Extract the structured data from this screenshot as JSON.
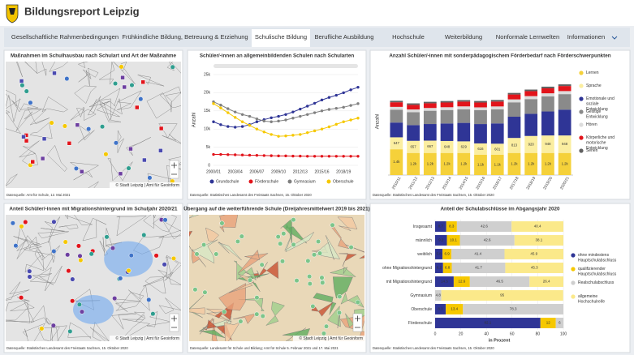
{
  "header": {
    "title": "Bildungsreport Leipzig"
  },
  "nav": {
    "tabs": [
      "Gesellschaftliche Rahmenbedingungen",
      "Frühkindliche Bildung, Betreuung & Erziehung",
      "Schulische Bildung",
      "Berufliche Ausbildung",
      "Hochschule",
      "Weiterbildung",
      "Nonformale Lernwelten",
      "Informationen"
    ],
    "active": 2
  },
  "panels": [
    {
      "title": "Maßnahmen im Schulhausbau nach Schulart und Art der Maßnahme",
      "source": "Datenquelle: Amt für Schule, 12. Mai 2021",
      "attribution": "© Stadt Leipzig | Amt für Geoinform"
    },
    {
      "title": "Schüler/-innen an allgemeinbildenden Schulen nach Schularten",
      "source": "Datenquelle: Statistisches Landesamt des Freistaats Sachsen, 15. Oktober 2020",
      "chart": {
        "type": "line",
        "ylabel": "Anzahl",
        "categories": [
          "2000/01",
          null,
          null,
          "2003/04",
          null,
          null,
          "2006/07",
          null,
          null,
          "2009/10",
          null,
          null,
          "2012/13",
          null,
          null,
          "2015/16",
          null,
          null,
          "2018/19",
          null,
          null
        ],
        "ylim": [
          0,
          25000
        ],
        "yticks": [
          0,
          {
            "value": 5000,
            "label": "5k"
          },
          {
            "value": 10000,
            "label": "10k"
          },
          {
            "value": 15000,
            "label": "15k"
          },
          {
            "value": 20000,
            "label": "20k"
          },
          {
            "value": 25000,
            "label": "25k"
          }
        ],
        "series": [
          {
            "name": "Grundschule",
            "color": "#2f3596",
            "values": [
              12000,
              11200,
              10700,
              10500,
              10700,
              11200,
              12000,
              12600,
              13100,
              13500,
              14000,
              14700,
              15500,
              16300,
              17100,
              18000,
              18700,
              19300,
              20000,
              20800,
              21500
            ]
          },
          {
            "name": "Förderschule",
            "color": "#e2141b",
            "values": [
              3000,
              3000,
              2950,
              2900,
              2850,
              2800,
              2750,
              2700,
              2650,
              2600,
              2600,
              2550,
              2550,
              2500,
              2500,
              2500,
              2500,
              2500,
              2500,
              2500,
              2500
            ]
          },
          {
            "name": "Gymnasium",
            "color": "#808080",
            "values": [
              17500,
              16600,
              15600,
              14700,
              14000,
              13500,
              12800,
              12200,
              12000,
              12200,
              12500,
              13000,
              13500,
              14000,
              14500,
              15000,
              15400,
              15700,
              16000,
              16500,
              17000
            ]
          },
          {
            "name": "Oberschule",
            "color": "#f6c800",
            "values": [
              17000,
              15800,
              14500,
              13200,
              12000,
              11000,
              10000,
              9200,
              8500,
              8000,
              8100,
              8300,
              8500,
              9000,
              9500,
              10000,
              10600,
              11300,
              12000,
              12500,
              13000
            ]
          }
        ]
      }
    },
    {
      "title": "Anzahl Schüler/-innen mit sonderpädagogischem Förderbedarf nach Förderschwerpunkten",
      "source": "Datenquelle: Statistisches Landesamt des Freistaats Sachsen, 15. Oktober 2020",
      "chart": {
        "type": "stacked_bar",
        "ylabel": "Anzahl",
        "ylim": [
          0,
          5800
        ],
        "categories": [
          "2010/11",
          "2011/12",
          "2012/13",
          "2013/14",
          "2014/15",
          "2015/16",
          "2016/17",
          "2017/18",
          "2018/19",
          "2019/20",
          "2020/21"
        ],
        "series": [
          {
            "name": "Lernen",
            "color": "#f5d13a",
            "values": [
              1400,
              1200,
              1200,
              1200,
              1200,
              1100,
              1100,
              1200,
              1200,
              1200,
              1200
            ],
            "value_labels": [
              "1.4k",
              "1.2k",
              "1.2k",
              "1.2k",
              "1.2k",
              "1.1k",
              "1.1k",
              "1.2k",
              "1.2k",
              "1.2k",
              "1.2k"
            ]
          },
          {
            "name": "Sprache",
            "color": "#fbeea0",
            "values": [
              647,
              657,
              667,
              648,
              629,
              616,
              601,
              813,
              920,
              948,
              948
            ]
          },
          {
            "name": "Emotionale und soziale Entwicklung",
            "color": "#2f3596",
            "values": [
              800,
              850,
              900,
              950,
              1000,
              1050,
              1100,
              1150,
              1200,
              1300,
              1400
            ]
          },
          {
            "name": "Geistige Entwicklung",
            "color": "#8a8a8a",
            "values": [
              700,
              700,
              720,
              730,
              740,
              750,
              760,
              780,
              800,
              820,
              840
            ]
          },
          {
            "name": "Hören",
            "color": "#dcdcdc",
            "values": [
              150,
              150,
              150,
              150,
              155,
              155,
              160,
              160,
              160,
              165,
              165
            ]
          },
          {
            "name": "Körperliche und motorische Entwicklung",
            "color": "#e2141b",
            "values": [
              250,
              250,
              255,
              255,
              260,
              260,
              265,
              265,
              270,
              270,
              275
            ]
          },
          {
            "name": "Sehen",
            "color": "#606060",
            "values": [
              80,
              80,
              80,
              80,
              80,
              85,
              85,
              85,
              85,
              90,
              90
            ]
          }
        ]
      }
    },
    {
      "title": "Anteil Schüler/-innen mit Migrationshintergrund im Schuljahr 2020/21",
      "source": "Datenquelle: Statistisches Landesamt des Freistaats Sachsen, 15. Oktober 2020",
      "attribution": "© Stadt Leipzig | Amt für Geoinform"
    },
    {
      "title": "Übergang auf die weiterführende Schule (Dreijahresmittelwert 2019 bis 2021)",
      "source": "Datenquelle: Landesamt für Schule und Bildung; Amt für Schule 5. Februar 2021 und 17. Mai 2021",
      "attribution": "© Stadt Leipzig | Amt für Geoinform",
      "choropleth": true
    },
    {
      "title": "Anteil der Schulabschlüsse im Abgangsjahr 2020",
      "source": "Datenquelle: Statistisches Landesamt des Freistaats Sachsen, 15. Oktober 2020",
      "chart": {
        "type": "stacked_hbar",
        "xlabel": "in Prozent",
        "xlim": [
          0,
          100
        ],
        "xticks": [
          0,
          20,
          40,
          60,
          80,
          100
        ],
        "categories": [
          "Insgesamt",
          "männlich",
          "weiblich",
          "ohne Migrationshintergrund",
          "mit Migrationshintergrund",
          "Gymnasium",
          "Oberschule",
          "Förderschule"
        ],
        "series": [
          {
            "name": "ohne mindestens Hauptschulabschluss",
            "color": "#2f3596",
            "values": [
              8.7,
              9.2,
              5.8,
              6.2,
              14.5,
              null,
              8.3,
              82.1
            ]
          },
          {
            "name": "qualifizierender Hauptschulabschluss",
            "color": "#f6c800",
            "values": [
              8.3,
              10.1,
              6.9,
              6.8,
              12.6,
              null,
              13.4,
              12
            ]
          },
          {
            "name": "Realschulabschluss",
            "color": "#cfcfcf",
            "values": [
              42.6,
              42.6,
              41.4,
              41.7,
              46.5,
              4.8,
              78.3,
              6
            ]
          },
          {
            "name": "allgemeine Hochschulreife",
            "color": "#fbe98a",
            "values": [
              40.4,
              38.1,
              45.9,
              45.3,
              26.4,
              95,
              null,
              null
            ]
          }
        ]
      }
    }
  ]
}
